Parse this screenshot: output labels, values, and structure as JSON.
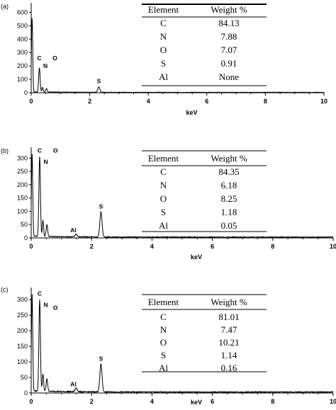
{
  "chart_data": [
    {
      "type": "line",
      "panel_label": "(a)",
      "xlabel": "keV",
      "ylabel": "",
      "xlim": [
        0,
        10
      ],
      "ylim": [
        0,
        650
      ],
      "x_ticks": [
        0,
        2,
        4,
        6,
        8,
        10
      ],
      "y_ticks": [
        0,
        100,
        200,
        300,
        400,
        500,
        600
      ],
      "grid": false,
      "peaks": [
        {
          "label": "",
          "x": 0.03,
          "y": 550
        },
        {
          "label": "C",
          "x": 0.28,
          "y": 180
        },
        {
          "label": "N",
          "x": 0.39,
          "y": 35
        },
        {
          "label": "O",
          "x": 0.52,
          "y": 25
        },
        {
          "label": "S",
          "x": 2.31,
          "y": 40
        }
      ],
      "table": {
        "headers": [
          "Element",
          "Weight %"
        ],
        "rows": [
          [
            "C",
            "84.13"
          ],
          [
            "N",
            "7.88"
          ],
          [
            "O",
            "7.07"
          ],
          [
            "S",
            "0.91"
          ],
          [
            "Al",
            "None"
          ]
        ]
      }
    },
    {
      "type": "line",
      "panel_label": "(b)",
      "xlabel": "keV",
      "ylabel": "",
      "xlim": [
        0,
        10
      ],
      "ylim": [
        0,
        330
      ],
      "x_ticks": [
        0,
        2,
        4,
        6,
        8,
        10
      ],
      "y_ticks": [
        0,
        50,
        100,
        150,
        200,
        250,
        300
      ],
      "grid": false,
      "peaks": [
        {
          "label": "",
          "x": 0.03,
          "y": 310
        },
        {
          "label": "C",
          "x": 0.28,
          "y": 300
        },
        {
          "label": "N",
          "x": 0.39,
          "y": 60
        },
        {
          "label": "O",
          "x": 0.52,
          "y": 45
        },
        {
          "label": "Al",
          "x": 1.49,
          "y": 10
        },
        {
          "label": "S",
          "x": 2.31,
          "y": 95
        }
      ],
      "table": {
        "headers": [
          "Element",
          "Weight %"
        ],
        "rows": [
          [
            "C",
            "84.35"
          ],
          [
            "N",
            "6.18"
          ],
          [
            "O",
            "8.25"
          ],
          [
            "S",
            "1.18"
          ],
          [
            "Al",
            "0.05"
          ]
        ]
      }
    },
    {
      "type": "line",
      "panel_label": "(c)",
      "xlabel": "keV",
      "ylabel": "",
      "xlim": [
        0,
        10
      ],
      "ylim": [
        0,
        330
      ],
      "x_ticks": [
        0,
        2,
        4,
        6,
        8,
        10
      ],
      "y_ticks": [
        0,
        50,
        100,
        150,
        200,
        250,
        300
      ],
      "grid": false,
      "peaks": [
        {
          "label": "",
          "x": 0.03,
          "y": 310
        },
        {
          "label": "C",
          "x": 0.28,
          "y": 295
        },
        {
          "label": "N",
          "x": 0.39,
          "y": 55
        },
        {
          "label": "O",
          "x": 0.52,
          "y": 40
        },
        {
          "label": "Al",
          "x": 1.49,
          "y": 12
        },
        {
          "label": "S",
          "x": 2.31,
          "y": 90
        }
      ],
      "table": {
        "headers": [
          "Element",
          "Weight %"
        ],
        "rows": [
          [
            "C",
            "81.01"
          ],
          [
            "N",
            "7.47"
          ],
          [
            "O",
            "10.21"
          ],
          [
            "S",
            "1.14"
          ],
          [
            "Al",
            "0.16"
          ]
        ]
      }
    }
  ]
}
